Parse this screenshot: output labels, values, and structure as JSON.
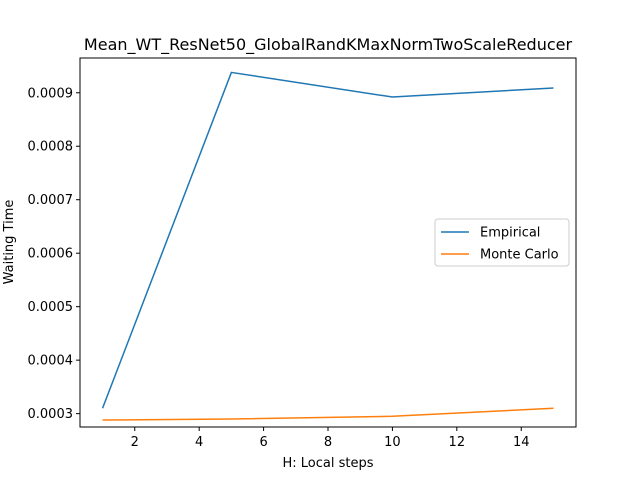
{
  "chart_data": {
    "type": "line",
    "title": "Mean_WT_ResNet50_GlobalRandKMaxNormTwoScaleReducer",
    "xlabel": "H: Local steps",
    "ylabel": "Waiting Time",
    "xlim": [
      0.3,
      15.7
    ],
    "ylim": [
      0.000275,
      0.000965
    ],
    "xticks": [
      2,
      4,
      6,
      8,
      10,
      12,
      14
    ],
    "xtick_labels": [
      "2",
      "4",
      "6",
      "8",
      "10",
      "12",
      "14"
    ],
    "yticks": [
      0.0003,
      0.0004,
      0.0005,
      0.0006,
      0.0007,
      0.0008,
      0.0009
    ],
    "ytick_labels": [
      "0.0003",
      "0.0004",
      "0.0005",
      "0.0006",
      "0.0007",
      "0.0008",
      "0.0009"
    ],
    "grid": false,
    "legend_position": "center-right",
    "series": [
      {
        "name": "Empirical",
        "color": "#1f77b4",
        "x": [
          1,
          5,
          10,
          15
        ],
        "y": [
          0.00031,
          0.000938,
          0.000892,
          0.000909
        ]
      },
      {
        "name": "Monte Carlo",
        "color": "#ff7f0e",
        "x": [
          1,
          5,
          10,
          15
        ],
        "y": [
          0.000288,
          0.00029,
          0.000295,
          0.00031
        ]
      }
    ]
  }
}
